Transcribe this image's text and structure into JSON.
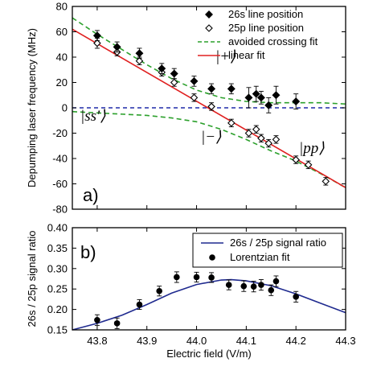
{
  "chart_data": [
    {
      "panel_label": "a)",
      "type": "scatter",
      "title": "",
      "xlabel": "",
      "ylabel": "Depumping laser frequency (MHz)",
      "xlim": [
        43.75,
        44.3
      ],
      "ylim": [
        -80,
        80
      ],
      "yticks": [
        "80",
        "60",
        "40",
        "20",
        "0",
        "-20",
        "-40",
        "-60",
        "-80"
      ],
      "grid": false,
      "legend": {
        "placement": "top-right",
        "entries": [
          "26s line position",
          "25p line position",
          "avoided crossing fit",
          "linear fit"
        ]
      },
      "annotations": [
        "|+⟩",
        "|ss'⟩",
        "|−⟩",
        "|pp⟩"
      ],
      "series": [
        {
          "name": "26s line position",
          "marker": "filled-diamond",
          "color": "#000000",
          "points": [
            {
              "x": 43.8,
              "y": 57,
              "err": 4
            },
            {
              "x": 43.84,
              "y": 48,
              "err": 4
            },
            {
              "x": 43.885,
              "y": 43,
              "err": 4
            },
            {
              "x": 43.93,
              "y": 31,
              "err": 4
            },
            {
              "x": 43.955,
              "y": 27,
              "err": 4
            },
            {
              "x": 43.995,
              "y": 21,
              "err": 4
            },
            {
              "x": 44.03,
              "y": 15,
              "err": 4
            },
            {
              "x": 44.07,
              "y": 15,
              "err": 4
            },
            {
              "x": 44.105,
              "y": 8,
              "err": 8
            },
            {
              "x": 44.12,
              "y": 11,
              "err": 6
            },
            {
              "x": 44.13,
              "y": 8,
              "err": 5
            },
            {
              "x": 44.145,
              "y": 2,
              "err": 6
            },
            {
              "x": 44.16,
              "y": 10,
              "err": 7
            },
            {
              "x": 44.2,
              "y": 5,
              "err": 6
            }
          ]
        },
        {
          "name": "25p line position",
          "marker": "open-diamond",
          "color": "#000000",
          "points": [
            {
              "x": 43.8,
              "y": 51,
              "err": 4
            },
            {
              "x": 43.84,
              "y": 44,
              "err": 3
            },
            {
              "x": 43.885,
              "y": 37,
              "err": 3
            },
            {
              "x": 43.93,
              "y": 28,
              "err": 3
            },
            {
              "x": 43.955,
              "y": 20,
              "err": 3
            },
            {
              "x": 43.995,
              "y": 8,
              "err": 3
            },
            {
              "x": 44.03,
              "y": 1,
              "err": 3
            },
            {
              "x": 44.07,
              "y": -12,
              "err": 3
            },
            {
              "x": 44.105,
              "y": -20,
              "err": 3
            },
            {
              "x": 44.12,
              "y": -17,
              "err": 3
            },
            {
              "x": 44.13,
              "y": -24,
              "err": 3
            },
            {
              "x": 44.145,
              "y": -28,
              "err": 3
            },
            {
              "x": 44.16,
              "y": -25,
              "err": 3
            },
            {
              "x": 44.2,
              "y": -41,
              "err": 3
            },
            {
              "x": 44.225,
              "y": -45,
              "err": 3
            },
            {
              "x": 44.26,
              "y": -58,
              "err": 3
            }
          ]
        },
        {
          "name": "avoided crossing fit",
          "style": "dashed",
          "color": "#2ca02c",
          "x": [
            43.75,
            43.8,
            43.85,
            43.9,
            43.95,
            44.0,
            44.05,
            44.1,
            44.15,
            44.2,
            44.25,
            44.3
          ],
          "upper": [
            71,
            58,
            46,
            34,
            23,
            14,
            8,
            5,
            4,
            4,
            4,
            3
          ],
          "lower": [
            -3,
            -4,
            -5,
            -6,
            -8,
            -11,
            -17,
            -25,
            -34,
            -42,
            -52,
            -63
          ]
        },
        {
          "name": "linear fit",
          "style": "solid",
          "color": "#e02020",
          "x": [
            43.75,
            44.3
          ],
          "y": [
            62,
            -63
          ]
        },
        {
          "name": "",
          "style": "dashed",
          "color": "#1f2aa8",
          "x": [
            43.75,
            44.3
          ],
          "y": [
            0,
            0
          ]
        }
      ]
    },
    {
      "panel_label": "b)",
      "type": "scatter",
      "title": "",
      "xlabel": "Electric field (V/m)",
      "ylabel": "26s / 25p signal ratio",
      "xlim": [
        43.75,
        44.3
      ],
      "ylim": [
        0.15,
        0.4
      ],
      "xticks": [
        "43.8",
        "43.9",
        "44.0",
        "44.1",
        "44.2",
        "44.3"
      ],
      "yticks": [
        "0.40",
        "0.35",
        "0.30",
        "0.25",
        "0.20",
        "0.15"
      ],
      "grid": false,
      "legend": {
        "placement": "top-right",
        "entries": [
          "26s / 25p signal ratio",
          "Lorentzian fit"
        ]
      },
      "series": [
        {
          "name": "26s / 25p signal ratio",
          "style": "solid",
          "color": "#1f2a8f",
          "x": [
            43.75,
            43.8,
            43.85,
            43.9,
            43.95,
            44.0,
            44.05,
            44.07,
            44.1,
            44.15,
            44.2,
            44.25,
            44.3
          ],
          "y": [
            0.15,
            0.166,
            0.186,
            0.212,
            0.24,
            0.261,
            0.272,
            0.273,
            0.27,
            0.258,
            0.238,
            0.215,
            0.192
          ]
        },
        {
          "name": "Lorentzian fit",
          "marker": "filled-circle",
          "color": "#000000",
          "points": [
            {
              "x": 43.8,
              "y": 0.174,
              "err": 0.013
            },
            {
              "x": 43.84,
              "y": 0.166,
              "err": 0.013
            },
            {
              "x": 43.885,
              "y": 0.212,
              "err": 0.012
            },
            {
              "x": 43.925,
              "y": 0.245,
              "err": 0.012
            },
            {
              "x": 43.96,
              "y": 0.279,
              "err": 0.013
            },
            {
              "x": 44.0,
              "y": 0.279,
              "err": 0.012
            },
            {
              "x": 44.03,
              "y": 0.278,
              "err": 0.012
            },
            {
              "x": 44.065,
              "y": 0.26,
              "err": 0.012
            },
            {
              "x": 44.095,
              "y": 0.257,
              "err": 0.013
            },
            {
              "x": 44.115,
              "y": 0.256,
              "err": 0.013
            },
            {
              "x": 44.13,
              "y": 0.26,
              "err": 0.013
            },
            {
              "x": 44.15,
              "y": 0.247,
              "err": 0.013
            },
            {
              "x": 44.16,
              "y": 0.269,
              "err": 0.013
            },
            {
              "x": 44.2,
              "y": 0.231,
              "err": 0.013
            }
          ]
        }
      ]
    }
  ]
}
